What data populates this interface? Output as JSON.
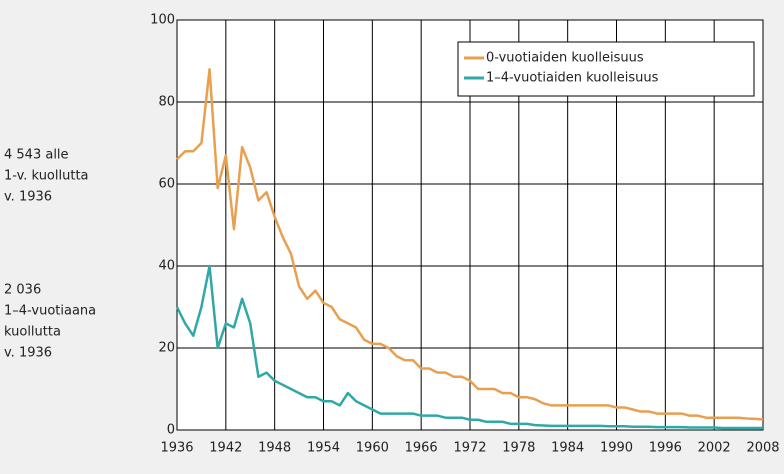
{
  "chart_data": {
    "type": "line",
    "annotations": [
      [
        "4 543 alle",
        "1-v. kuollutta",
        "v. 1936"
      ],
      [
        "2 036",
        "1–4-vuotiaana",
        "kuollutta",
        "v. 1936"
      ]
    ],
    "x": [
      1936,
      1937,
      1938,
      1939,
      1940,
      1941,
      1942,
      1943,
      1944,
      1945,
      1946,
      1947,
      1948,
      1949,
      1950,
      1951,
      1952,
      1953,
      1954,
      1955,
      1956,
      1957,
      1958,
      1959,
      1960,
      1961,
      1962,
      1963,
      1964,
      1965,
      1966,
      1967,
      1968,
      1969,
      1970,
      1971,
      1972,
      1973,
      1974,
      1975,
      1976,
      1977,
      1978,
      1979,
      1980,
      1981,
      1982,
      1983,
      1984,
      1985,
      1986,
      1987,
      1988,
      1989,
      1990,
      1991,
      1992,
      1993,
      1994,
      1995,
      1996,
      1997,
      1998,
      1999,
      2000,
      2001,
      2002,
      2003,
      2004,
      2005,
      2006,
      2007,
      2008
    ],
    "series": [
      {
        "name": "0-vuotiaiden kuolleisuus",
        "color": "#e8a050",
        "values": [
          66,
          68,
          68,
          70,
          88,
          59,
          67,
          49,
          69,
          64,
          56,
          58,
          52,
          47,
          43,
          35,
          32,
          34,
          31,
          30,
          27,
          26,
          25,
          22,
          21,
          21,
          20,
          18,
          17,
          17,
          15,
          15,
          14,
          14,
          13,
          13,
          12,
          10,
          10,
          10,
          9,
          9,
          8,
          8,
          7.5,
          6.5,
          6,
          6,
          6,
          6,
          6,
          6,
          6,
          6,
          5.5,
          5.5,
          5,
          4.5,
          4.5,
          4,
          4,
          4,
          4,
          3.5,
          3.5,
          3,
          3,
          3,
          3,
          3,
          2.8,
          2.7,
          2.6
        ]
      },
      {
        "name": "1–4-vuotiaiden kuolleisuus",
        "color": "#30a8a8",
        "values": [
          30,
          26,
          23,
          30,
          40,
          20,
          26,
          25,
          32,
          26,
          13,
          14,
          12,
          11,
          10,
          9,
          8,
          8,
          7,
          7,
          6,
          9,
          7,
          6,
          5,
          4,
          4,
          4,
          4,
          4,
          3.5,
          3.5,
          3.5,
          3,
          3,
          3,
          2.5,
          2.5,
          2,
          2,
          2,
          1.5,
          1.5,
          1.5,
          1.2,
          1.1,
          1,
          1,
          1,
          1,
          1,
          1,
          1,
          0.9,
          0.9,
          0.9,
          0.8,
          0.8,
          0.8,
          0.7,
          0.7,
          0.7,
          0.7,
          0.6,
          0.6,
          0.6,
          0.6,
          0.5,
          0.5,
          0.5,
          0.5,
          0.5,
          0.5
        ]
      }
    ],
    "xlim": [
      1936,
      2008
    ],
    "xticks": [
      1936,
      1942,
      1948,
      1954,
      1960,
      1966,
      1972,
      1978,
      1984,
      1990,
      1996,
      2002,
      2008
    ],
    "ylim": [
      0,
      100
    ],
    "yticks": [
      0,
      20,
      40,
      60,
      80,
      100
    ],
    "grid": true,
    "legend": "upper right"
  }
}
